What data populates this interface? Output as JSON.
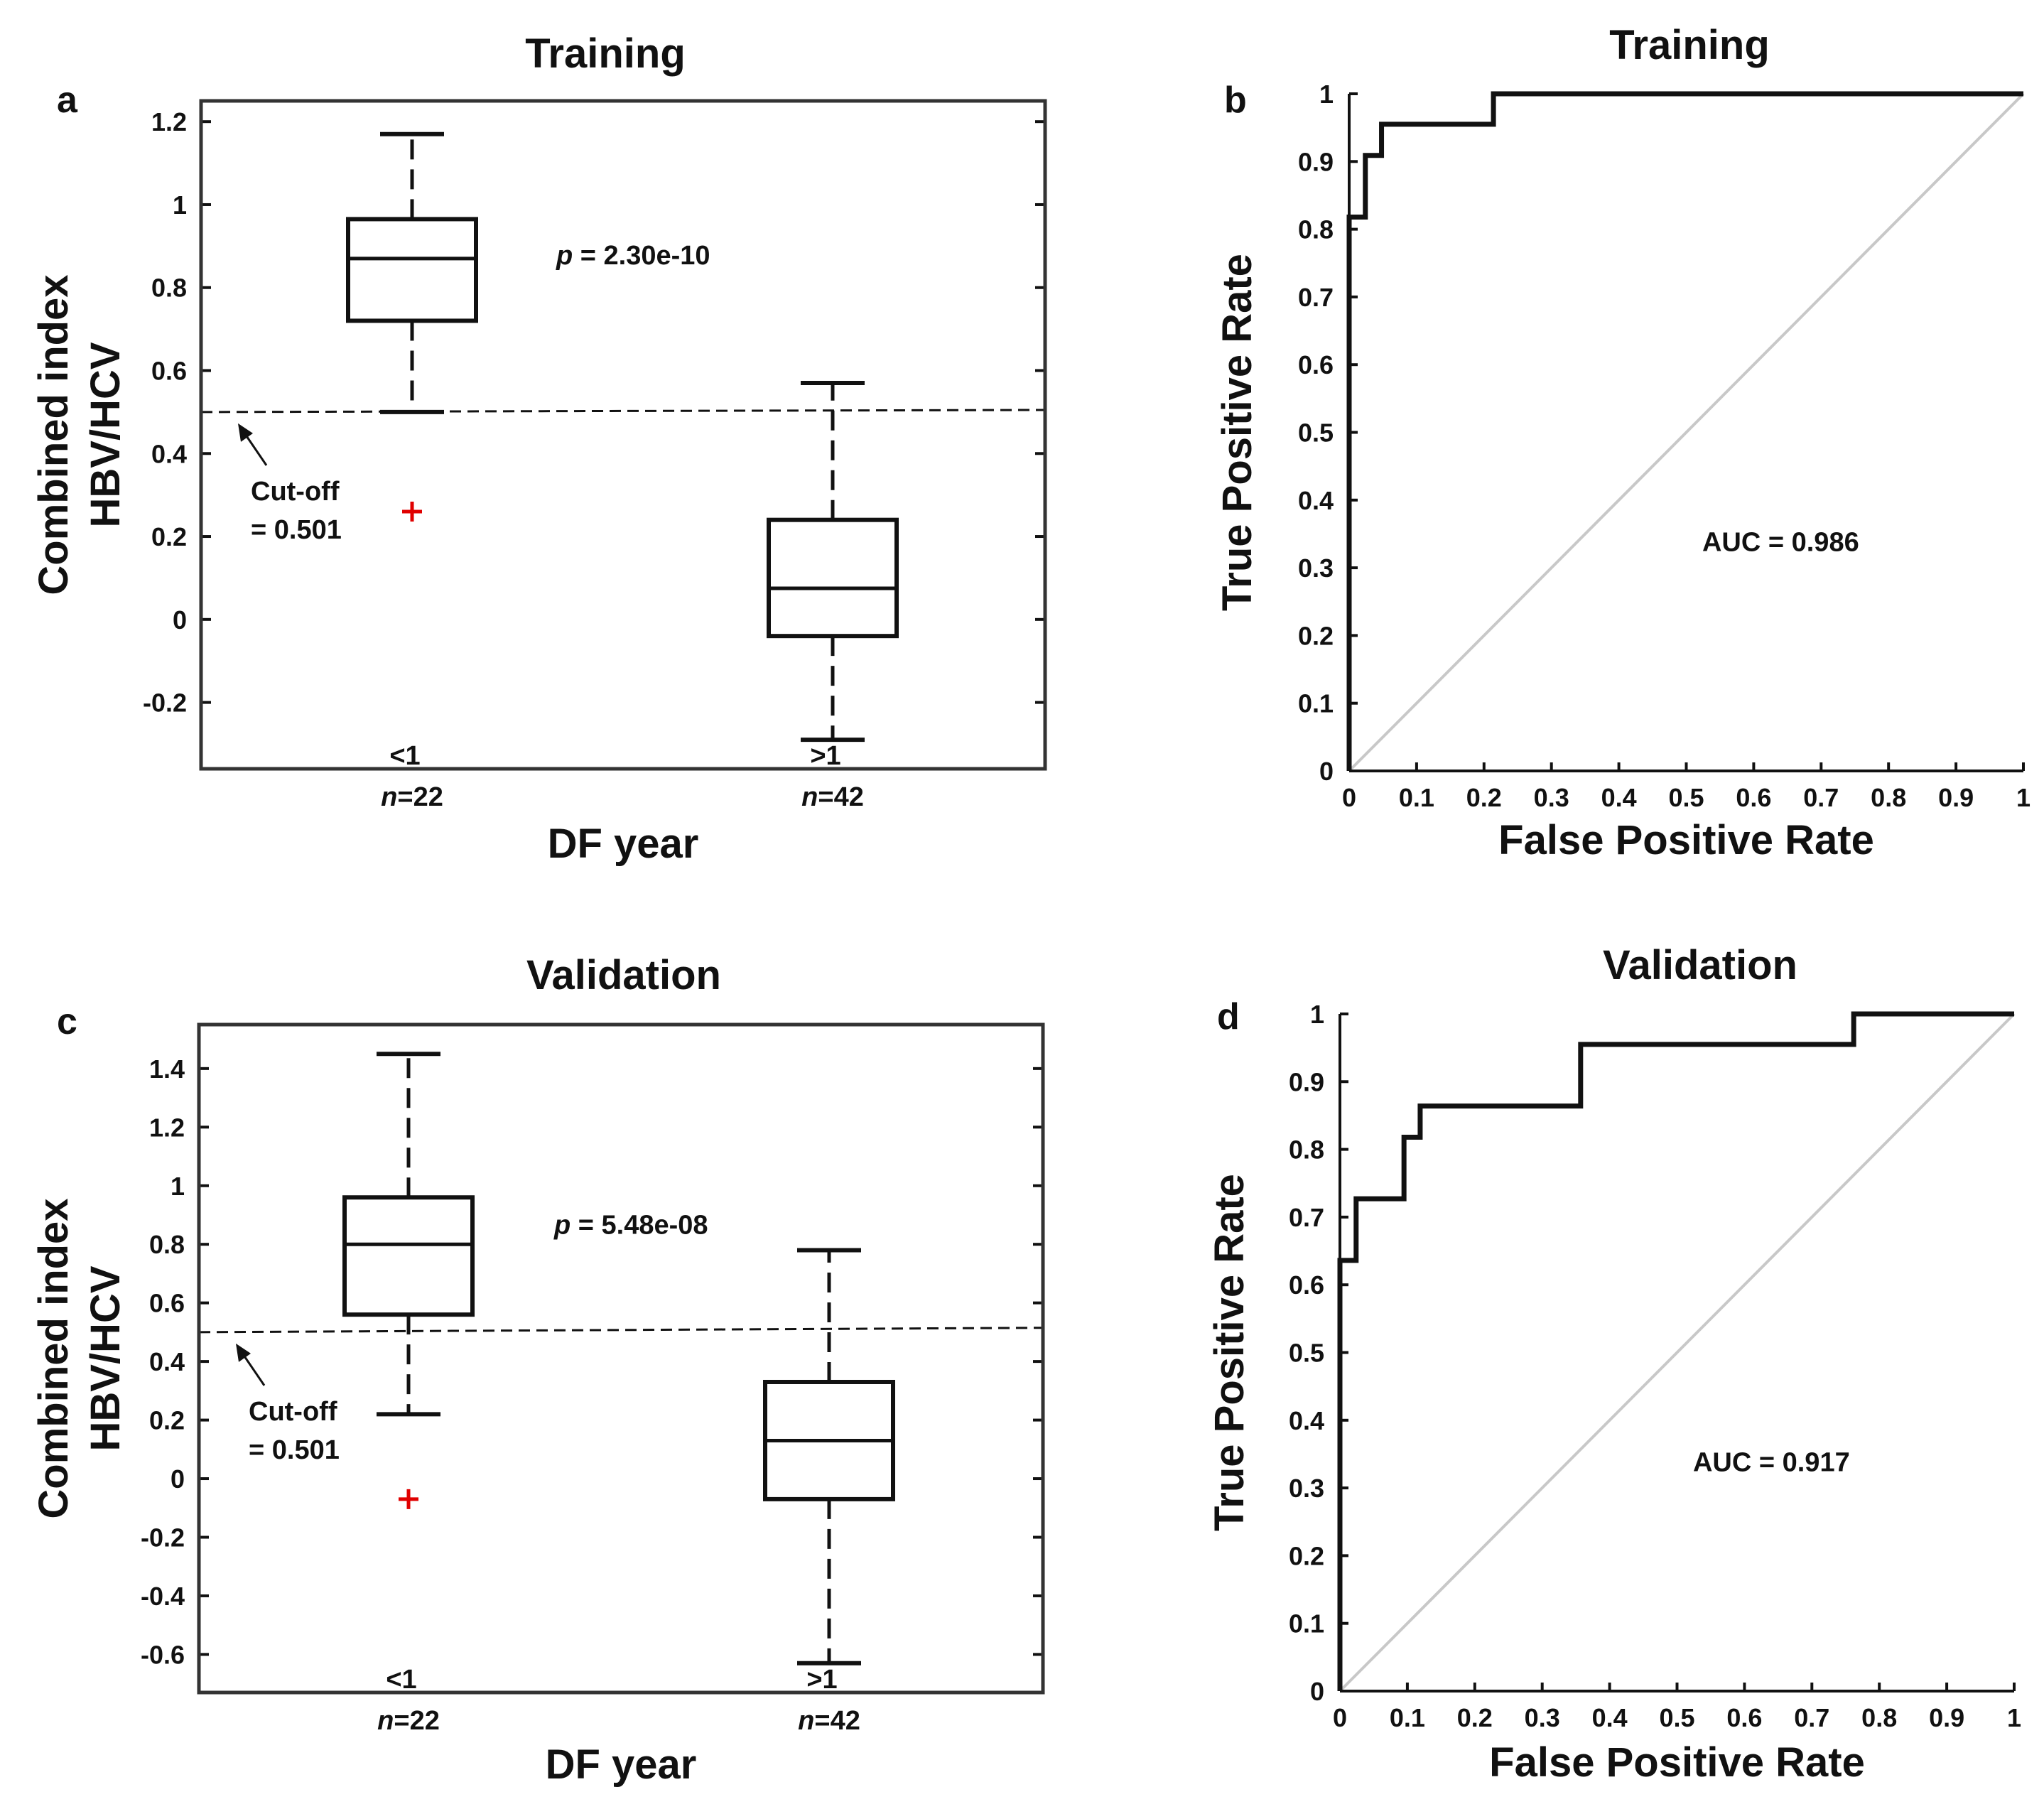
{
  "chart_data": [
    {
      "id": "a",
      "type": "box",
      "panel_label": "a",
      "title": "Training",
      "xlabel": "DF year",
      "ylabel_lines": [
        "Combined index",
        "HBV/HCV"
      ],
      "ylim": [
        -0.36,
        1.25
      ],
      "yticks": [
        -0.2,
        0,
        0.2,
        0.4,
        0.6,
        0.8,
        1,
        1.2
      ],
      "ytick_labels": [
        "-0.2",
        "0",
        "0.2",
        "0.4",
        "0.6",
        "0.8",
        "1",
        "1.2"
      ],
      "groups": [
        {
          "label": "<1",
          "n_prefix": "n",
          "n_value": "=22",
          "whisker_low": 0.5,
          "q1": 0.72,
          "median": 0.87,
          "q3": 0.965,
          "whisker_high": 1.17,
          "outliers": [
            0.26
          ]
        },
        {
          "label": ">1",
          "n_prefix": "n",
          "n_value": "=42",
          "whisker_low": -0.29,
          "q1": -0.04,
          "median": 0.075,
          "q3": 0.24,
          "whisker_high": 0.57,
          "outliers": []
        }
      ],
      "cutoff": {
        "y_start": 0.5,
        "y_end": 0.505,
        "label_lines": [
          "Cut-off",
          "= 0.501"
        ]
      },
      "p_label": {
        "symbol": "p",
        "text": " = 2.30e-10"
      },
      "colors": {
        "box": "#111111",
        "outlier": "#e00000"
      }
    },
    {
      "id": "b",
      "type": "line",
      "panel_label": "b",
      "title": "Training",
      "xlabel": "False Positive Rate",
      "ylabel": "True Positive Rate",
      "xlim": [
        0,
        1
      ],
      "ylim": [
        0,
        1
      ],
      "ticks": [
        0,
        0.1,
        0.2,
        0.3,
        0.4,
        0.5,
        0.6,
        0.7,
        0.8,
        0.9,
        1
      ],
      "tick_labels": [
        "0",
        "0.1",
        "0.2",
        "0.3",
        "0.4",
        "0.5",
        "0.6",
        "0.7",
        "0.8",
        "0.9",
        "1"
      ],
      "roc": {
        "x": [
          0,
          0,
          0.024,
          0.024,
          0.048,
          0.048,
          0.214,
          0.214,
          1
        ],
        "y": [
          0,
          0.818,
          0.818,
          0.909,
          0.909,
          0.955,
          0.955,
          1,
          1
        ]
      },
      "diagonal": true,
      "auc_label": "AUC = 0.986",
      "colors": {
        "roc": "#111111",
        "diagonal": "#c8c8c8"
      }
    },
    {
      "id": "c",
      "type": "box",
      "panel_label": "c",
      "title": "Validation",
      "xlabel": "DF year",
      "ylabel_lines": [
        "Combined index",
        "HBV/HCV"
      ],
      "ylim": [
        -0.73,
        1.55
      ],
      "yticks": [
        -0.6,
        -0.4,
        -0.2,
        0,
        0.2,
        0.4,
        0.6,
        0.8,
        1,
        1.2,
        1.4
      ],
      "ytick_labels": [
        "-0.6",
        "-0.4",
        "-0.2",
        "0",
        "0.2",
        "0.4",
        "0.6",
        "0.8",
        "1",
        "1.2",
        "1.4"
      ],
      "groups": [
        {
          "label": "<1",
          "n_prefix": "n",
          "n_value": "=22",
          "whisker_low": 0.22,
          "q1": 0.56,
          "median": 0.8,
          "q3": 0.96,
          "whisker_high": 1.45,
          "outliers": [
            -0.07
          ]
        },
        {
          "label": ">1",
          "n_prefix": "n",
          "n_value": "=42",
          "whisker_low": -0.63,
          "q1": -0.07,
          "median": 0.13,
          "q3": 0.33,
          "whisker_high": 0.78,
          "outliers": []
        }
      ],
      "cutoff": {
        "y_start": 0.5,
        "y_end": 0.515,
        "label_lines": [
          "Cut-off",
          "= 0.501"
        ]
      },
      "p_label": {
        "symbol": "p",
        "text": " = 5.48e-08"
      },
      "colors": {
        "box": "#111111",
        "outlier": "#e00000"
      }
    },
    {
      "id": "d",
      "type": "line",
      "panel_label": "d",
      "title": "Validation",
      "xlabel": "False Positive Rate",
      "ylabel": "True Positive Rate",
      "xlim": [
        0,
        1
      ],
      "ylim": [
        0,
        1
      ],
      "ticks": [
        0,
        0.1,
        0.2,
        0.3,
        0.4,
        0.5,
        0.6,
        0.7,
        0.8,
        0.9,
        1
      ],
      "tick_labels": [
        "0",
        "0.1",
        "0.2",
        "0.3",
        "0.4",
        "0.5",
        "0.6",
        "0.7",
        "0.8",
        "0.9",
        "1"
      ],
      "roc": {
        "x": [
          0,
          0,
          0.024,
          0.024,
          0.095,
          0.095,
          0.119,
          0.119,
          0.357,
          0.357,
          0.762,
          0.762,
          1
        ],
        "y": [
          0,
          0.636,
          0.636,
          0.727,
          0.727,
          0.818,
          0.818,
          0.864,
          0.864,
          0.955,
          0.955,
          1,
          1
        ]
      },
      "diagonal": true,
      "auc_label": "AUC = 0.917",
      "colors": {
        "roc": "#111111",
        "diagonal": "#c8c8c8"
      }
    }
  ]
}
